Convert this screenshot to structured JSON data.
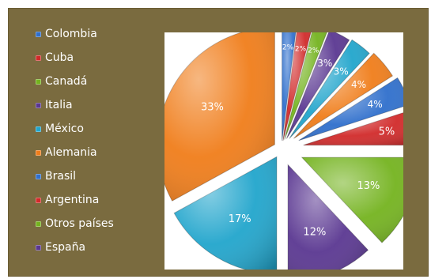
{
  "chart_data": {
    "type": "pie",
    "title": "",
    "exploded": true,
    "legend_position": "left",
    "slices": [
      {
        "label": "Colombia",
        "value": 2,
        "value_label": "2%",
        "color": "#2f6fcc"
      },
      {
        "label": "Cuba",
        "value": 2,
        "value_label": "2%",
        "color": "#d12a2a"
      },
      {
        "label": "Canadá",
        "value": 2,
        "value_label": "2%",
        "color": "#74b31f"
      },
      {
        "label": "Italia",
        "value": 3,
        "value_label": "3%",
        "color": "#5a3791"
      },
      {
        "label": "México",
        "value": 3,
        "value_label": "3%",
        "color": "#21a5cc"
      },
      {
        "label": "Alemania",
        "value": 4,
        "value_label": "4%",
        "color": "#f07d1a"
      },
      {
        "label": "Brasil",
        "value": 4,
        "value_label": "4%",
        "color": "#2f6fcc"
      },
      {
        "label": "Argentina",
        "value": 5,
        "value_label": "5%",
        "color": "#d12a2a"
      },
      {
        "label": "Otros países",
        "value": 13,
        "value_label": "13%",
        "color": "#74b31f"
      },
      {
        "label": "España",
        "value": 12,
        "value_label": "12%",
        "color": "#5a3791"
      },
      {
        "label": "",
        "value": 17,
        "value_label": "17%",
        "color": "#21a5cc"
      },
      {
        "label": "",
        "value": 33,
        "value_label": "33%",
        "color": "#f07d1a"
      }
    ]
  }
}
